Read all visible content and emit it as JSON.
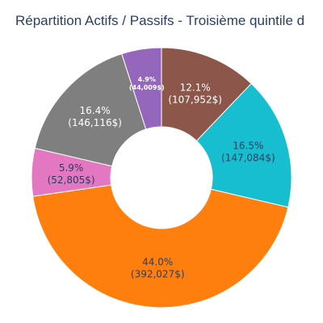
{
  "chart_data": {
    "type": "pie",
    "hole": true,
    "title": "Répartition Actifs / Passifs - Troisième quintile d",
    "slices": [
      {
        "pct_label": "12.1%",
        "value_label": "(107,952$)",
        "value": 107952,
        "color": "#8c564b",
        "label_color": "#ffffff"
      },
      {
        "pct_label": "16.5%",
        "value_label": "(147,084$)",
        "value": 147084,
        "color": "#17becf",
        "label_color": "#2a3f5f"
      },
      {
        "pct_label": "44.0%",
        "value_label": "(392,027$)",
        "value": 392027,
        "color": "#ff7f0e",
        "label_color": "#2a3f5f"
      },
      {
        "pct_label": "5.9%",
        "value_label": "(52,805$)",
        "value": 52805,
        "color": "#e377c2",
        "label_color": "#2a3f5f"
      },
      {
        "pct_label": "16.4%",
        "value_label": "(146,116$)",
        "value": 146116,
        "color": "#7f7f7f",
        "label_color": "#ffffff"
      },
      {
        "pct_label": "4.9%",
        "value_label": "(44,009$)",
        "value": 44009,
        "color": "#9467bd",
        "label_color": "#ffffff",
        "small": true
      }
    ]
  }
}
